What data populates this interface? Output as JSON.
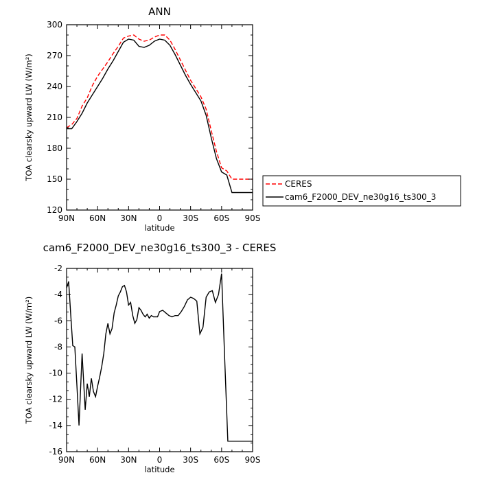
{
  "chart_data": [
    {
      "type": "line",
      "title": "ANN",
      "xlabel": "latitude",
      "ylabel": "TOA clearsky upward LW (W/m²)",
      "ylim": [
        120,
        300
      ],
      "yticks": [
        120,
        150,
        180,
        210,
        240,
        270,
        300
      ],
      "xticks": [
        "90N",
        "60N",
        "30N",
        "0",
        "30S",
        "60S",
        "90S"
      ],
      "grid": false,
      "legend_position": "right",
      "series": [
        {
          "name": "CERES",
          "color": "#ff0000",
          "dash": "dashed",
          "x": [
            -90,
            -85,
            -80,
            -75,
            -70,
            -65,
            -60,
            -55,
            -50,
            -45,
            -40,
            -35,
            -30,
            -25,
            -20,
            -15,
            -10,
            -5,
            0,
            5,
            10,
            15,
            20,
            25,
            30,
            35,
            40,
            45,
            50,
            55,
            60,
            65,
            70,
            75,
            80,
            85,
            90
          ],
          "y": [
            200,
            203,
            209,
            221,
            229,
            241,
            250,
            257,
            264,
            272,
            279,
            287,
            289,
            290,
            286,
            284,
            285,
            288,
            290,
            290,
            285,
            276,
            266,
            256,
            246,
            238,
            230,
            218,
            197,
            177,
            161,
            158,
            150,
            150,
            150,
            150,
            150
          ]
        },
        {
          "name": "cam6_F2000_DEV_ne30g16_ts300_3",
          "color": "#000000",
          "dash": "solid",
          "x": [
            -90,
            -85,
            -80,
            -75,
            -70,
            -65,
            -60,
            -55,
            -50,
            -45,
            -40,
            -35,
            -30,
            -25,
            -20,
            -15,
            -10,
            -5,
            0,
            5,
            10,
            15,
            20,
            25,
            30,
            35,
            40,
            45,
            50,
            55,
            60,
            65,
            70,
            75,
            80,
            85,
            90
          ],
          "y": [
            199,
            199,
            206,
            214,
            224,
            232,
            240,
            248,
            257,
            265,
            274,
            283,
            286,
            285,
            279,
            278,
            280,
            284,
            286,
            285,
            280,
            271,
            261,
            251,
            242,
            234,
            226,
            212,
            190,
            170,
            157,
            154,
            137,
            137,
            137,
            137,
            137
          ]
        }
      ]
    },
    {
      "type": "line",
      "title": "cam6_F2000_DEV_ne30g16_ts300_3 - CERES",
      "xlabel": "latitude",
      "ylabel": "TOA clearsky upward LW (W/m²)",
      "ylim": [
        -16,
        -2
      ],
      "yticks": [
        -16,
        -14,
        -12,
        -10,
        -8,
        -6,
        -4,
        -2
      ],
      "xticks": [
        "90N",
        "60N",
        "30N",
        "0",
        "30S",
        "60S",
        "90S"
      ],
      "grid": false,
      "series": [
        {
          "color": "#000000",
          "x": [
            -90,
            -88,
            -86,
            -84,
            -82,
            -80,
            -78,
            -75,
            -72,
            -70,
            -68,
            -66,
            -64,
            -62,
            -60,
            -58,
            -56,
            -54,
            -52,
            -50,
            -48,
            -46,
            -44,
            -42,
            -40,
            -38,
            -36,
            -34,
            -32,
            -30,
            -28,
            -26,
            -24,
            -22,
            -20,
            -18,
            -16,
            -14,
            -12,
            -10,
            -8,
            -6,
            -4,
            -2,
            0,
            3,
            6,
            9,
            12,
            15,
            18,
            21,
            24,
            27,
            30,
            33,
            36,
            39,
            42,
            45,
            48,
            51,
            54,
            57,
            60,
            63,
            66,
            69,
            72,
            75,
            78,
            80,
            82,
            84,
            86,
            88,
            90
          ],
          "y": [
            -3.5,
            -3.0,
            -5.5,
            -7.9,
            -8.0,
            -11.0,
            -14.0,
            -8.5,
            -12.8,
            -10.8,
            -11.8,
            -10.4,
            -11.4,
            -11.8,
            -11.0,
            -10.3,
            -9.5,
            -8.5,
            -7.0,
            -6.2,
            -7.0,
            -6.6,
            -5.4,
            -4.8,
            -4.1,
            -3.8,
            -3.4,
            -3.3,
            -3.8,
            -4.8,
            -4.6,
            -5.6,
            -6.2,
            -5.9,
            -5.0,
            -5.2,
            -5.5,
            -5.7,
            -5.5,
            -5.8,
            -5.6,
            -5.7,
            -5.7,
            -5.7,
            -5.3,
            -5.2,
            -5.4,
            -5.6,
            -5.7,
            -5.6,
            -5.6,
            -5.3,
            -4.9,
            -4.4,
            -4.2,
            -4.3,
            -4.5,
            -7.0,
            -6.5,
            -4.2,
            -3.8,
            -3.7,
            -4.6,
            -4.0,
            -2.4,
            -9.0,
            -15.2,
            -15.2,
            -15.2,
            -15.2,
            -15.2,
            -15.2,
            -15.2,
            -15.2,
            -15.2,
            -15.2,
            -15.2
          ]
        }
      ]
    }
  ]
}
